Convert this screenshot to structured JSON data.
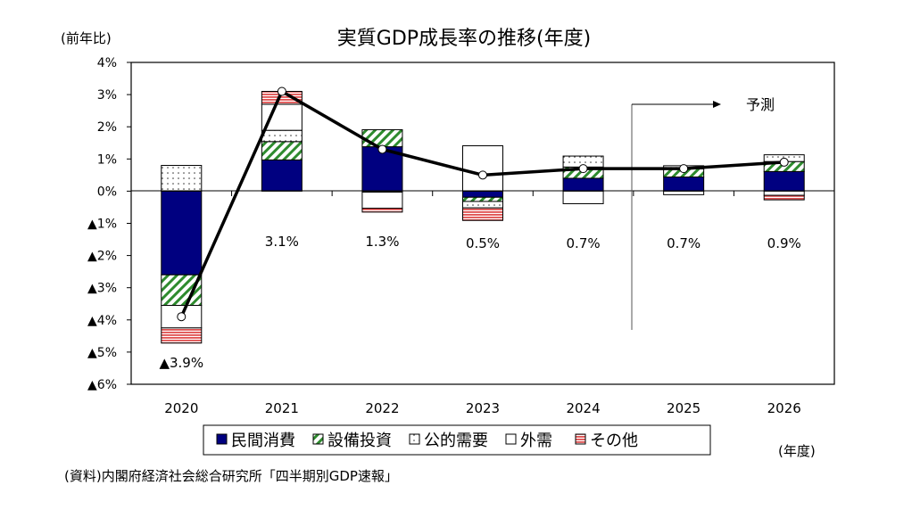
{
  "chart_data": {
    "type": "bar",
    "title": "実質GDP成長率の推移(年度)",
    "ylabel": "(前年比)",
    "xlabel": "(年度)",
    "source": "(資料)内閣府経済社会総合研究所「四半期別GDP速報」",
    "forecast_label": "予測",
    "categories": [
      "2020",
      "2021",
      "2022",
      "2023",
      "2024",
      "2025",
      "2026"
    ],
    "ylim": [
      -6,
      4
    ],
    "yticks": [
      4,
      3,
      2,
      1,
      0,
      -1,
      -2,
      -3,
      -4,
      -5,
      -6
    ],
    "ytick_labels": [
      "4%",
      "3%",
      "2%",
      "1%",
      "0%",
      "▲1%",
      "▲2%",
      "▲3%",
      "▲4%",
      "▲5%",
      "▲6%"
    ],
    "stacked": true,
    "series": [
      {
        "name": "民間消費",
        "color": "#000080",
        "pattern": "solid",
        "values": [
          -2.6,
          0.97,
          1.38,
          -0.19,
          0.4,
          0.44,
          0.61
        ]
      },
      {
        "name": "設備投資",
        "color": "#2e8b2e",
        "pattern": "diagonal",
        "values": [
          -0.95,
          0.57,
          0.53,
          -0.13,
          0.35,
          0.25,
          0.31
        ]
      },
      {
        "name": "公的需要",
        "color": "#000000",
        "pattern": "dots",
        "values": [
          0.8,
          0.35,
          -0.03,
          -0.2,
          0.34,
          0.1,
          0.21
        ]
      },
      {
        "name": "外需",
        "color": "#ffffff",
        "pattern": "blank",
        "values": [
          -0.7,
          0.81,
          -0.5,
          1.41,
          -0.39,
          -0.11,
          -0.13
        ]
      },
      {
        "name": "その他",
        "color": "#e05050",
        "pattern": "horizontal",
        "values": [
          -0.47,
          0.4,
          -0.12,
          -0.39,
          0,
          0,
          -0.14
        ]
      }
    ],
    "line": {
      "values": [
        -3.9,
        3.1,
        1.3,
        0.5,
        0.7,
        0.7,
        0.9
      ],
      "labels": [
        "▲3.9%",
        "3.1%",
        "1.3%",
        "0.5%",
        "0.7%",
        "0.7%",
        "0.9%"
      ]
    },
    "forecast_start": "2025",
    "grid": false,
    "legend": "bottom"
  }
}
